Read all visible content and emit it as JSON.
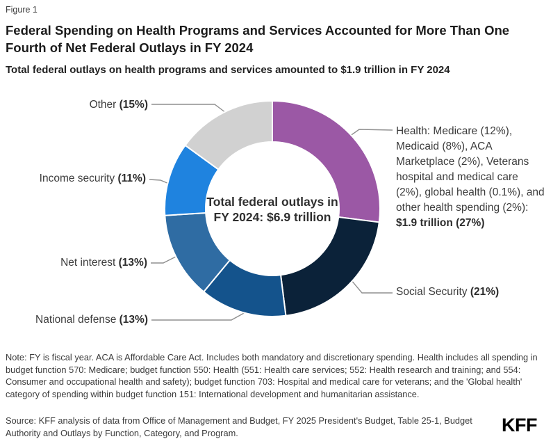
{
  "figure_label": "Figure 1",
  "title": "Federal Spending on Health Programs and Services Accounted for More Than One Fourth of Net Federal Outlays in FY 2024",
  "subtitle": "Total federal outlays on health programs and services amounted to $1.9 trillion in FY 2024",
  "chart_data": {
    "type": "pie",
    "subtype": "donut",
    "direction": "clockwise",
    "start_angle": "12 o'clock",
    "units": "percent of net federal outlays FY 2024",
    "total": "$6.9 trillion",
    "center_label_line1": "Total federal outlays in",
    "center_label_line2": "FY 2024: $6.9 trillion",
    "slices": [
      {
        "name": "Health",
        "value_pct": 27,
        "amount": "$1.9 trillion",
        "color": "#9B58A5",
        "label_regular": "Health: Medicare (12%), Medicaid (8%), ACA Marketplace (2%), Veterans hospital and medical care (2%), global health (0.1%), and other health spending (2%): ",
        "label_bold": "$1.9 trillion (27%)"
      },
      {
        "name": "Social Security",
        "value_pct": 21,
        "color": "#0B2239",
        "label_regular": "Social Security ",
        "label_bold": "(21%)"
      },
      {
        "name": "National defense",
        "value_pct": 13,
        "color": "#14538C",
        "label_regular": "National defense ",
        "label_bold": "(13%)"
      },
      {
        "name": "Net interest",
        "value_pct": 13,
        "color": "#2F6CA3",
        "label_regular": "Net interest ",
        "label_bold": "(13%)"
      },
      {
        "name": "Income security",
        "value_pct": 11,
        "color": "#1F83DF",
        "label_regular": "Income security ",
        "label_bold": "(11%)"
      },
      {
        "name": "Other",
        "value_pct": 15,
        "color": "#D1D1D1",
        "label_regular": "Other ",
        "label_bold": "(15%)"
      }
    ]
  },
  "note": "Note: FY is fiscal year. ACA is Affordable Care Act. Includes both mandatory and discretionary spending. Health includes all spending in budget function 570: Medicare; budget function 550: Health (551: Health care services; 552: Health research and training; and 554: Consumer and occupational health and safety); budget function 703: Hospital and medical care for veterans; and the 'Global health' category of spending within budget function 151: International development and humanitarian assistance.",
  "source": "Source: KFF analysis of data from Office of Management and Budget, FY 2025 President's Budget, Table 25-1, Budget Authority and Outlays by Function, Category, and Program.",
  "logo_text": "KFF"
}
